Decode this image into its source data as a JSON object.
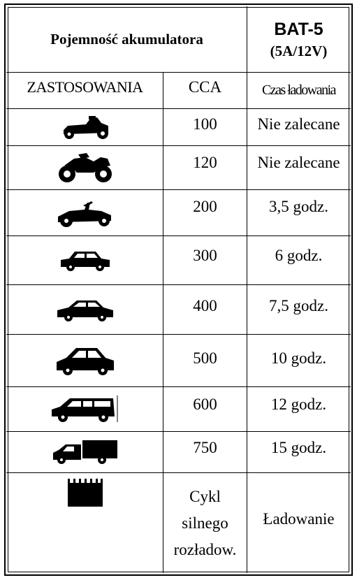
{
  "header": {
    "capacity_label": "Pojemność akumulatora",
    "model_name": "BAT-5",
    "model_spec": "(5A/12V)"
  },
  "columns": {
    "applications": "ZASTOSOWANIA",
    "cca": "CCA",
    "charge_time": "Czas ładowania"
  },
  "rows": [
    {
      "icon": "lawn-tractor-icon",
      "cca": "100",
      "time": "Nie zalecane"
    },
    {
      "icon": "motorcycle-icon",
      "cca": "120",
      "time": "Nie zalecane"
    },
    {
      "icon": "ride-on-mower-icon",
      "cca": "200",
      "time": "3,5 godz."
    },
    {
      "icon": "small-car-icon",
      "cca": "300",
      "time": "6 godz."
    },
    {
      "icon": "sedan-car-icon",
      "cca": "400",
      "time": "7,5 godz."
    },
    {
      "icon": "large-sedan-icon",
      "cca": "500",
      "time": "10 godz."
    },
    {
      "icon": "suv-icon",
      "cca": "600",
      "time": "12 godz."
    },
    {
      "icon": "truck-icon",
      "cca": "750",
      "time": "15 godz."
    }
  ],
  "deep_cycle": {
    "icon": "battery-icon",
    "cca_line1": "Cykl",
    "cca_line2": "silnego",
    "cca_line3": "rozładow.",
    "time": "Ładowanie"
  }
}
